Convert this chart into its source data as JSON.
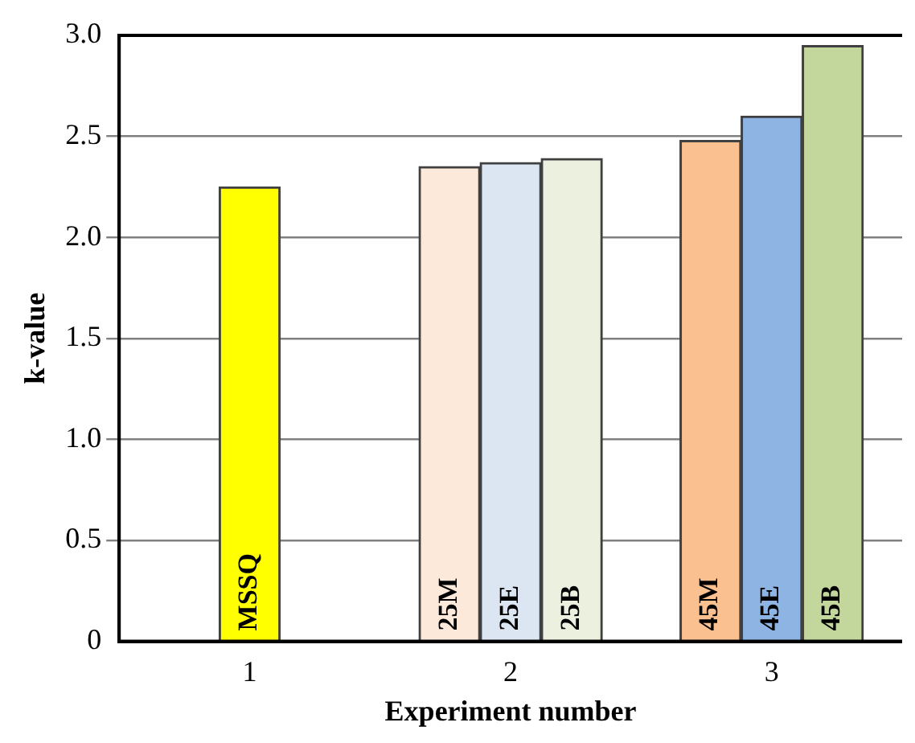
{
  "chart_data": {
    "type": "bar",
    "xlabel": "Experiment number",
    "ylabel": "k-value",
    "categories": [
      "1",
      "2",
      "3"
    ],
    "series": [
      {
        "name": "MSSQ",
        "color": "#ffff00",
        "values": [
          2.25,
          null,
          null
        ]
      },
      {
        "name": "25M",
        "color": "#fde9d9",
        "values": [
          null,
          2.35,
          null
        ]
      },
      {
        "name": "25E",
        "color": "#dce6f2",
        "values": [
          null,
          2.37,
          null
        ]
      },
      {
        "name": "25B",
        "color": "#ebf1de",
        "values": [
          null,
          2.39,
          null
        ]
      },
      {
        "name": "45M",
        "color": "#fac090",
        "values": [
          null,
          null,
          2.48
        ]
      },
      {
        "name": "45E",
        "color": "#8db4e2",
        "values": [
          null,
          null,
          2.6
        ]
      },
      {
        "name": "45B",
        "color": "#c3d69b",
        "values": [
          null,
          null,
          2.95
        ]
      }
    ],
    "ylim": [
      0,
      3
    ],
    "yticks": [
      0,
      0.5,
      {
        "value": 1,
        "label": "1.0"
      },
      1.5,
      {
        "value": 2,
        "label": "2.0"
      },
      2.5,
      {
        "value": 3,
        "label": "3.0"
      }
    ],
    "grid": "y",
    "legend": false
  }
}
